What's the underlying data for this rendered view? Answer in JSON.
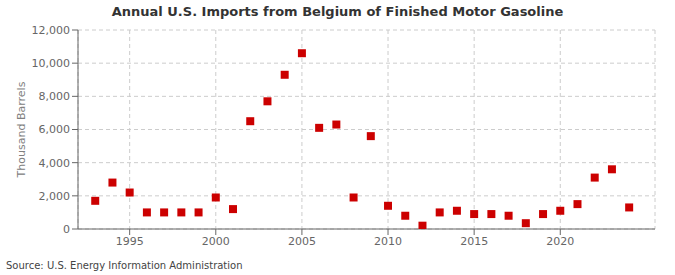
{
  "chart_data": {
    "type": "scatter",
    "title": "Annual U.S. Imports from Belgium of Finished Motor Gasoline",
    "y_label": "Thousand Barrels",
    "annotations": [
      "Source: U.S. Energy Information Administration"
    ],
    "x": [
      1993,
      1994,
      1995,
      1996,
      1997,
      1998,
      1999,
      2000,
      2001,
      2002,
      2003,
      2004,
      2005,
      2006,
      2007,
      2008,
      2009,
      2010,
      2011,
      2012,
      2013,
      2014,
      2015,
      2016,
      2017,
      2018,
      2019,
      2020,
      2021,
      2022,
      2023,
      2024
    ],
    "values": [
      1700,
      2800,
      2200,
      1000,
      1000,
      1000,
      1000,
      1900,
      1200,
      6500,
      7700,
      9300,
      10600,
      6100,
      6300,
      1900,
      5600,
      1400,
      800,
      200,
      1000,
      1100,
      900,
      900,
      800,
      350,
      900,
      1100,
      1500,
      3100,
      3600,
      1300
    ],
    "color": "#cc0000",
    "marker": "square",
    "xlim": [
      1992.0,
      2025.5
    ],
    "ylim": [
      0,
      12000
    ],
    "xticks": [
      1995,
      2000,
      2005,
      2010,
      2015,
      2020
    ],
    "yticks": [
      0,
      {
        "value": 2000,
        "label": "2,000"
      },
      {
        "value": 4000,
        "label": "4,000"
      },
      {
        "value": 6000,
        "label": "6,000"
      },
      {
        "value": 8000,
        "label": "8,000"
      },
      {
        "value": 10000,
        "label": "10,000"
      },
      {
        "value": 12000,
        "label": "12,000"
      }
    ],
    "grid": true
  }
}
